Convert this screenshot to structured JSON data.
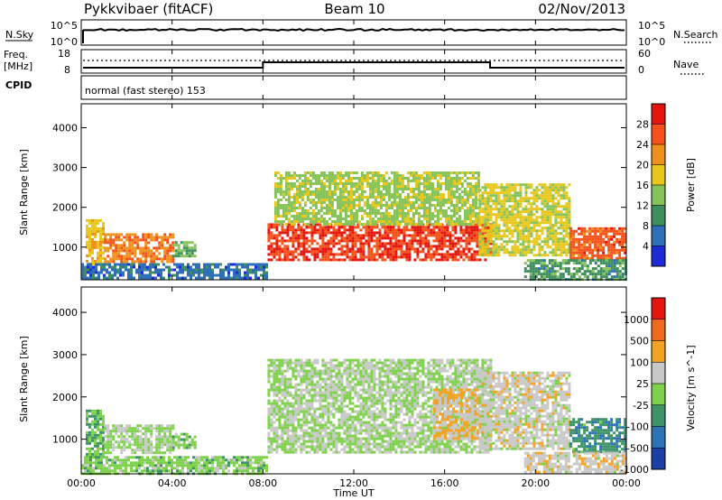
{
  "header": {
    "radar": "Pykkvibaer (fitACF)",
    "beam": "Beam 10",
    "date": "02/Nov/2013"
  },
  "aux": {
    "nsky_label": "N.Sky",
    "nsearch_label": "N.Search",
    "nsky_ticks": [
      "10^5",
      "10^0"
    ],
    "nsearch_ticks": [
      "10^5",
      "10^0"
    ],
    "freq_label": "Freq.",
    "freq_unit": "[MHz]",
    "freq_ticks": [
      "18",
      "8"
    ],
    "nave_label": "Nave",
    "nave_ticks": [
      "60",
      "0"
    ],
    "cpid_label": "CPID",
    "cpid_text": "normal (fast stereo) 153"
  },
  "chart_data": [
    {
      "type": "heatmap",
      "title": "",
      "ylabel": "Slant Range [km]",
      "xlabel": "Time UT",
      "xlim": [
        "00:00",
        "24:00"
      ],
      "ylim": [
        180,
        4600
      ],
      "yticks": [
        "1000",
        "2000",
        "3000",
        "4000"
      ],
      "colorbar": {
        "label": "Power [dB]",
        "ticks": [
          "4",
          "8",
          "12",
          "16",
          "20",
          "24",
          "28"
        ],
        "range": [
          0,
          30
        ],
        "colors": [
          "#1c2bd6",
          "#2f6fb8",
          "#3e8f5e",
          "#86c45a",
          "#e8c71d",
          "#f0901c",
          "#f4521a",
          "#e4140f"
        ]
      },
      "regions": [
        {
          "t0": 0.2,
          "t1": 1.0,
          "r0": 600,
          "r1": 1700,
          "v": 18
        },
        {
          "t0": 1.0,
          "t1": 4.0,
          "r0": 650,
          "r1": 1350,
          "v": 22
        },
        {
          "t0": 4.0,
          "t1": 5.0,
          "r0": 800,
          "r1": 1150,
          "v": 12
        },
        {
          "t0": 0.0,
          "t1": 8.2,
          "r0": 200,
          "r1": 600,
          "v": 6
        },
        {
          "t0": 8.2,
          "t1": 18.0,
          "r0": 700,
          "r1": 1600,
          "v": 26
        },
        {
          "t0": 8.5,
          "t1": 17.5,
          "r0": 1600,
          "r1": 2900,
          "v": 14
        },
        {
          "t0": 17.5,
          "t1": 21.5,
          "r0": 800,
          "r1": 2600,
          "v": 16
        },
        {
          "t0": 21.5,
          "t1": 24.0,
          "r0": 700,
          "r1": 1500,
          "v": 24
        },
        {
          "t0": 19.5,
          "t1": 24.0,
          "r0": 200,
          "r1": 700,
          "v": 10
        }
      ]
    },
    {
      "type": "heatmap",
      "title": "",
      "ylabel": "Slant Range [km]",
      "xlabel": "Time UT",
      "xlim": [
        "00:00",
        "24:00"
      ],
      "ylim": [
        180,
        4600
      ],
      "yticks": [
        "1000",
        "2000",
        "3000",
        "4000"
      ],
      "xticks": [
        "00:00",
        "04:00",
        "08:00",
        "12:00",
        "16:00",
        "20:00",
        "00:00"
      ],
      "colorbar": {
        "label": "Velocity [m s^-1]",
        "ticks": [
          "1000",
          "500",
          "100",
          "25",
          "-25",
          "-100",
          "-500",
          "-1000"
        ],
        "range": [
          -1200,
          1200
        ],
        "colors": [
          "#1b3fa8",
          "#2e74b5",
          "#3e9466",
          "#7ed14a",
          "#c8c8c8",
          "#f2a324",
          "#f06a1e",
          "#e4140f"
        ]
      },
      "regions": [
        {
          "t0": 0.2,
          "t1": 1.0,
          "r0": 600,
          "r1": 1700,
          "v": -300
        },
        {
          "t0": 1.0,
          "t1": 4.0,
          "r0": 650,
          "r1": 1350,
          "v": 0
        },
        {
          "t0": 4.0,
          "t1": 5.0,
          "r0": 800,
          "r1": 1150,
          "v": -150
        },
        {
          "t0": 0.0,
          "t1": 8.2,
          "r0": 200,
          "r1": 600,
          "v": -150
        },
        {
          "t0": 8.2,
          "t1": 18.0,
          "r0": 700,
          "r1": 2900,
          "v": 0
        },
        {
          "t0": 15.5,
          "t1": 17.5,
          "r0": 1000,
          "r1": 2200,
          "v": 300
        },
        {
          "t0": 17.5,
          "t1": 21.5,
          "r0": 800,
          "r1": 2600,
          "v": 150
        },
        {
          "t0": 21.5,
          "t1": 24.0,
          "r0": 700,
          "r1": 1500,
          "v": -500
        },
        {
          "t0": 19.5,
          "t1": 24.0,
          "r0": 200,
          "r1": 700,
          "v": 200
        }
      ]
    }
  ]
}
